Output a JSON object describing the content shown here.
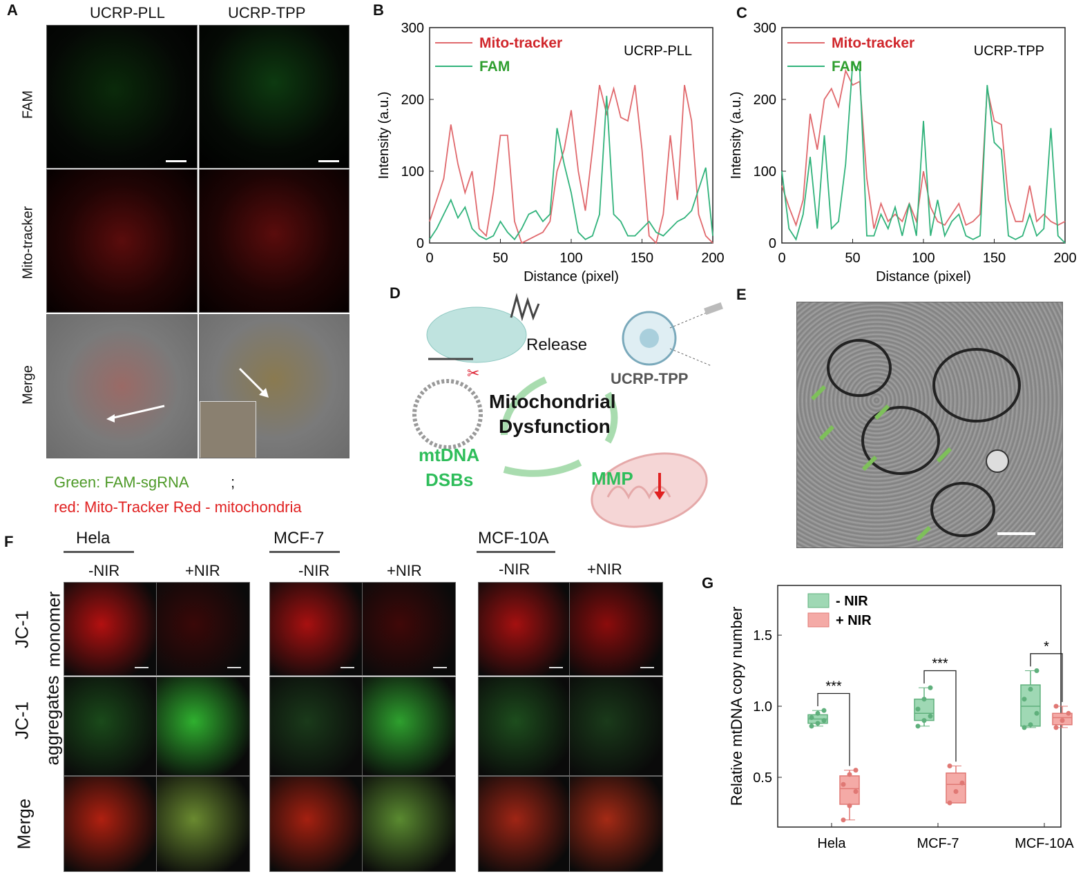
{
  "panels": {
    "A": "A",
    "B": "B",
    "C": "C",
    "D": "D",
    "E": "E",
    "F": "F",
    "G": "G"
  },
  "panel_a": {
    "columns": [
      "UCRP-PLL",
      "UCRP-TPP"
    ],
    "rows": [
      "FAM",
      "Mito-tracker",
      "Merge"
    ]
  },
  "legend_note": {
    "green": "Green: FAM-sgRNA",
    "sep": ";",
    "red": "red: Mito-Tracker Red - mitochondria"
  },
  "panel_d": {
    "release": "Release",
    "ucrp_tpp": "UCRP-TPP",
    "center1": "Mitochondrial",
    "center2": "Dysfunction",
    "mtdna1": "mtDNA",
    "mtdna2": "DSBs",
    "mmp": "MMP"
  },
  "panel_f": {
    "groups": [
      "Hela",
      "MCF-7",
      "MCF-10A"
    ],
    "conditions": [
      "-NIR",
      "+NIR"
    ],
    "row_monomer_1": "JC-1",
    "row_monomer_2": "monomer",
    "row_aggr_1": "JC-1",
    "row_aggr_2": "aggregates",
    "row_merge": "Merge"
  },
  "colors": {
    "mito": "#e0686c",
    "fam": "#2fb27a",
    "mito_text": "#d0262b",
    "fam_text": "#2e9e2e",
    "box_green": "#9fd8b4",
    "box_red": "#f4aaa6"
  },
  "chart_data": [
    {
      "type": "line",
      "panel": "B",
      "title": "UCRP-PLL",
      "xlabel": "Distance (pixel)",
      "ylabel": "Intensity (a.u.)",
      "xlim": [
        0,
        200
      ],
      "ylim": [
        0,
        300
      ],
      "xticks": [
        0,
        50,
        100,
        150,
        200
      ],
      "yticks": [
        0,
        100,
        200,
        300
      ],
      "legend": "top-left",
      "series": [
        {
          "name": "Mito-tracker",
          "color": "#e0686c",
          "x": [
            0,
            5,
            10,
            15,
            20,
            25,
            30,
            35,
            40,
            45,
            50,
            55,
            60,
            65,
            70,
            75,
            80,
            85,
            90,
            95,
            100,
            105,
            110,
            115,
            120,
            125,
            130,
            135,
            140,
            145,
            150,
            155,
            160,
            165,
            170,
            175,
            180,
            185,
            190,
            195,
            200
          ],
          "y": [
            30,
            60,
            90,
            165,
            110,
            70,
            100,
            20,
            10,
            70,
            150,
            150,
            30,
            0,
            5,
            10,
            15,
            30,
            100,
            130,
            185,
            100,
            45,
            130,
            220,
            180,
            215,
            175,
            170,
            220,
            130,
            10,
            0,
            40,
            150,
            60,
            220,
            170,
            40,
            10,
            0
          ]
        },
        {
          "name": "FAM",
          "color": "#2fb27a",
          "x": [
            0,
            5,
            10,
            15,
            20,
            25,
            30,
            35,
            40,
            45,
            50,
            55,
            60,
            65,
            70,
            75,
            80,
            85,
            90,
            95,
            100,
            105,
            110,
            115,
            120,
            125,
            130,
            135,
            140,
            145,
            150,
            155,
            160,
            165,
            170,
            175,
            180,
            185,
            190,
            195,
            200
          ],
          "y": [
            5,
            20,
            40,
            60,
            35,
            50,
            20,
            10,
            5,
            10,
            30,
            15,
            5,
            20,
            40,
            45,
            30,
            40,
            160,
            110,
            70,
            15,
            5,
            10,
            40,
            205,
            40,
            30,
            10,
            10,
            20,
            30,
            15,
            10,
            20,
            30,
            35,
            45,
            75,
            105,
            10
          ]
        }
      ]
    },
    {
      "type": "line",
      "panel": "C",
      "title": "UCRP-TPP",
      "xlabel": "Distance (pixel)",
      "ylabel": "Intensity (a.u.)",
      "xlim": [
        0,
        200
      ],
      "ylim": [
        0,
        300
      ],
      "xticks": [
        0,
        50,
        100,
        150,
        200
      ],
      "yticks": [
        0,
        100,
        200,
        300
      ],
      "legend": "top-left",
      "series": [
        {
          "name": "Mito-tracker",
          "color": "#e0686c",
          "x": [
            0,
            5,
            10,
            15,
            20,
            25,
            30,
            35,
            40,
            45,
            50,
            55,
            60,
            65,
            70,
            75,
            80,
            85,
            90,
            95,
            100,
            105,
            110,
            115,
            120,
            125,
            130,
            135,
            140,
            145,
            150,
            155,
            160,
            165,
            170,
            175,
            180,
            185,
            190,
            195,
            200
          ],
          "y": [
            80,
            50,
            25,
            60,
            180,
            130,
            200,
            215,
            190,
            240,
            220,
            225,
            90,
            20,
            55,
            30,
            40,
            30,
            55,
            30,
            100,
            50,
            30,
            25,
            40,
            55,
            25,
            30,
            40,
            215,
            170,
            165,
            60,
            30,
            30,
            80,
            30,
            40,
            30,
            25,
            30
          ]
        },
        {
          "name": "FAM",
          "color": "#2fb27a",
          "x": [
            0,
            5,
            10,
            15,
            20,
            25,
            30,
            35,
            40,
            45,
            50,
            55,
            60,
            65,
            70,
            75,
            80,
            85,
            90,
            95,
            100,
            105,
            110,
            115,
            120,
            125,
            130,
            135,
            140,
            145,
            150,
            155,
            160,
            165,
            170,
            175,
            180,
            185,
            190,
            195,
            200
          ],
          "y": [
            100,
            20,
            5,
            40,
            120,
            20,
            150,
            20,
            30,
            110,
            250,
            240,
            10,
            10,
            40,
            20,
            50,
            10,
            55,
            10,
            170,
            10,
            60,
            10,
            30,
            40,
            10,
            5,
            10,
            220,
            140,
            130,
            10,
            5,
            10,
            40,
            10,
            20,
            160,
            10,
            0
          ]
        }
      ]
    },
    {
      "type": "box",
      "panel": "G",
      "xlabel": "",
      "ylabel": "Relative mtDNA copy number",
      "ylim": [
        0.15,
        1.85
      ],
      "yticks": [
        0.5,
        1.0,
        1.5
      ],
      "categories": [
        "Hela",
        "MCF-7",
        "MCF-10A"
      ],
      "legend": "top-left",
      "series": [
        {
          "name": "- NIR",
          "color": "#9fd8b4",
          "boxes": [
            {
              "min": 0.86,
              "q1": 0.88,
              "median": 0.91,
              "q3": 0.94,
              "max": 0.97,
              "points": [
                0.86,
                0.88,
                0.9,
                0.92,
                0.95,
                0.97
              ]
            },
            {
              "min": 0.86,
              "q1": 0.9,
              "median": 0.95,
              "q3": 1.05,
              "max": 1.13,
              "points": [
                0.86,
                0.9,
                0.93,
                0.98,
                1.05,
                1.13
              ]
            },
            {
              "min": 0.85,
              "q1": 0.86,
              "median": 1.0,
              "q3": 1.15,
              "max": 1.25,
              "points": [
                0.85,
                0.87,
                0.95,
                1.05,
                1.12,
                1.25
              ]
            }
          ]
        },
        {
          "name": "+ NIR",
          "color": "#f4aaa6",
          "boxes": [
            {
              "min": 0.2,
              "q1": 0.31,
              "median": 0.42,
              "q3": 0.51,
              "max": 0.55,
              "points": [
                0.2,
                0.3,
                0.4,
                0.45,
                0.52,
                0.55
              ]
            },
            {
              "min": 0.32,
              "q1": 0.32,
              "median": 0.45,
              "q3": 0.53,
              "max": 0.58,
              "points": [
                0.32,
                0.4,
                0.46,
                0.58
              ]
            },
            {
              "min": 0.85,
              "q1": 0.87,
              "median": 0.92,
              "q3": 0.95,
              "max": 1.0,
              "points": [
                0.85,
                0.9,
                0.95,
                1.0
              ]
            }
          ]
        }
      ],
      "significance": [
        "***",
        "***",
        "*"
      ]
    }
  ]
}
